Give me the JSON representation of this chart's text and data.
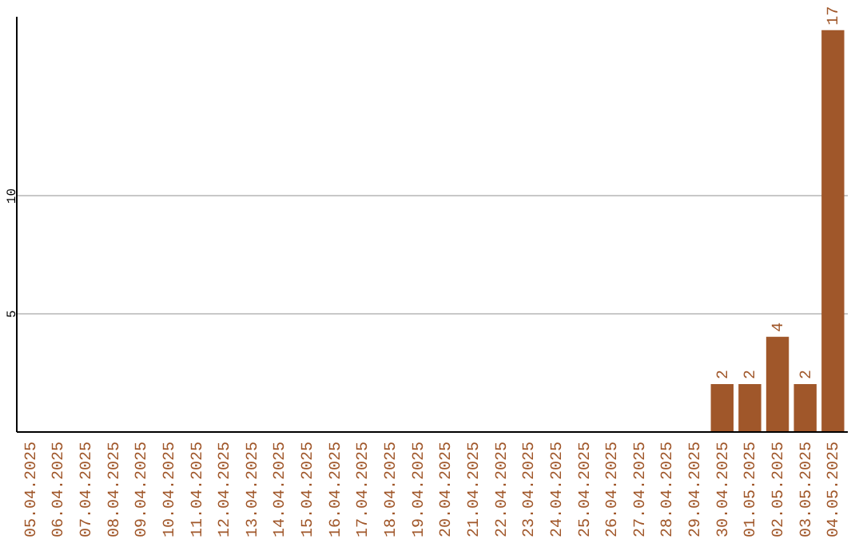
{
  "chart_data": {
    "type": "bar",
    "categories": [
      "05.04.2025",
      "06.04.2025",
      "07.04.2025",
      "08.04.2025",
      "09.04.2025",
      "10.04.2025",
      "11.04.2025",
      "12.04.2025",
      "13.04.2025",
      "14.04.2025",
      "15.04.2025",
      "16.04.2025",
      "17.04.2025",
      "18.04.2025",
      "19.04.2025",
      "20.04.2025",
      "21.04.2025",
      "22.04.2025",
      "23.04.2025",
      "24.04.2025",
      "25.04.2025",
      "26.04.2025",
      "27.04.2025",
      "28.04.2025",
      "29.04.2025",
      "30.04.2025",
      "01.05.2025",
      "02.05.2025",
      "03.05.2025",
      "04.05.2025"
    ],
    "values": [
      0,
      0,
      0,
      0,
      0,
      0,
      0,
      0,
      0,
      0,
      0,
      0,
      0,
      0,
      0,
      0,
      0,
      0,
      0,
      0,
      0,
      0,
      0,
      0,
      0,
      2,
      2,
      4,
      2,
      17
    ],
    "value_labels": [
      null,
      null,
      null,
      null,
      null,
      null,
      null,
      null,
      null,
      null,
      null,
      null,
      null,
      null,
      null,
      null,
      null,
      null,
      null,
      null,
      null,
      null,
      null,
      null,
      null,
      "2",
      "2",
      "4",
      "2",
      "17"
    ],
    "color": "#a0572a",
    "ylim": [
      0,
      17.6
    ],
    "yticks": [
      5,
      10
    ],
    "grid": "y"
  }
}
